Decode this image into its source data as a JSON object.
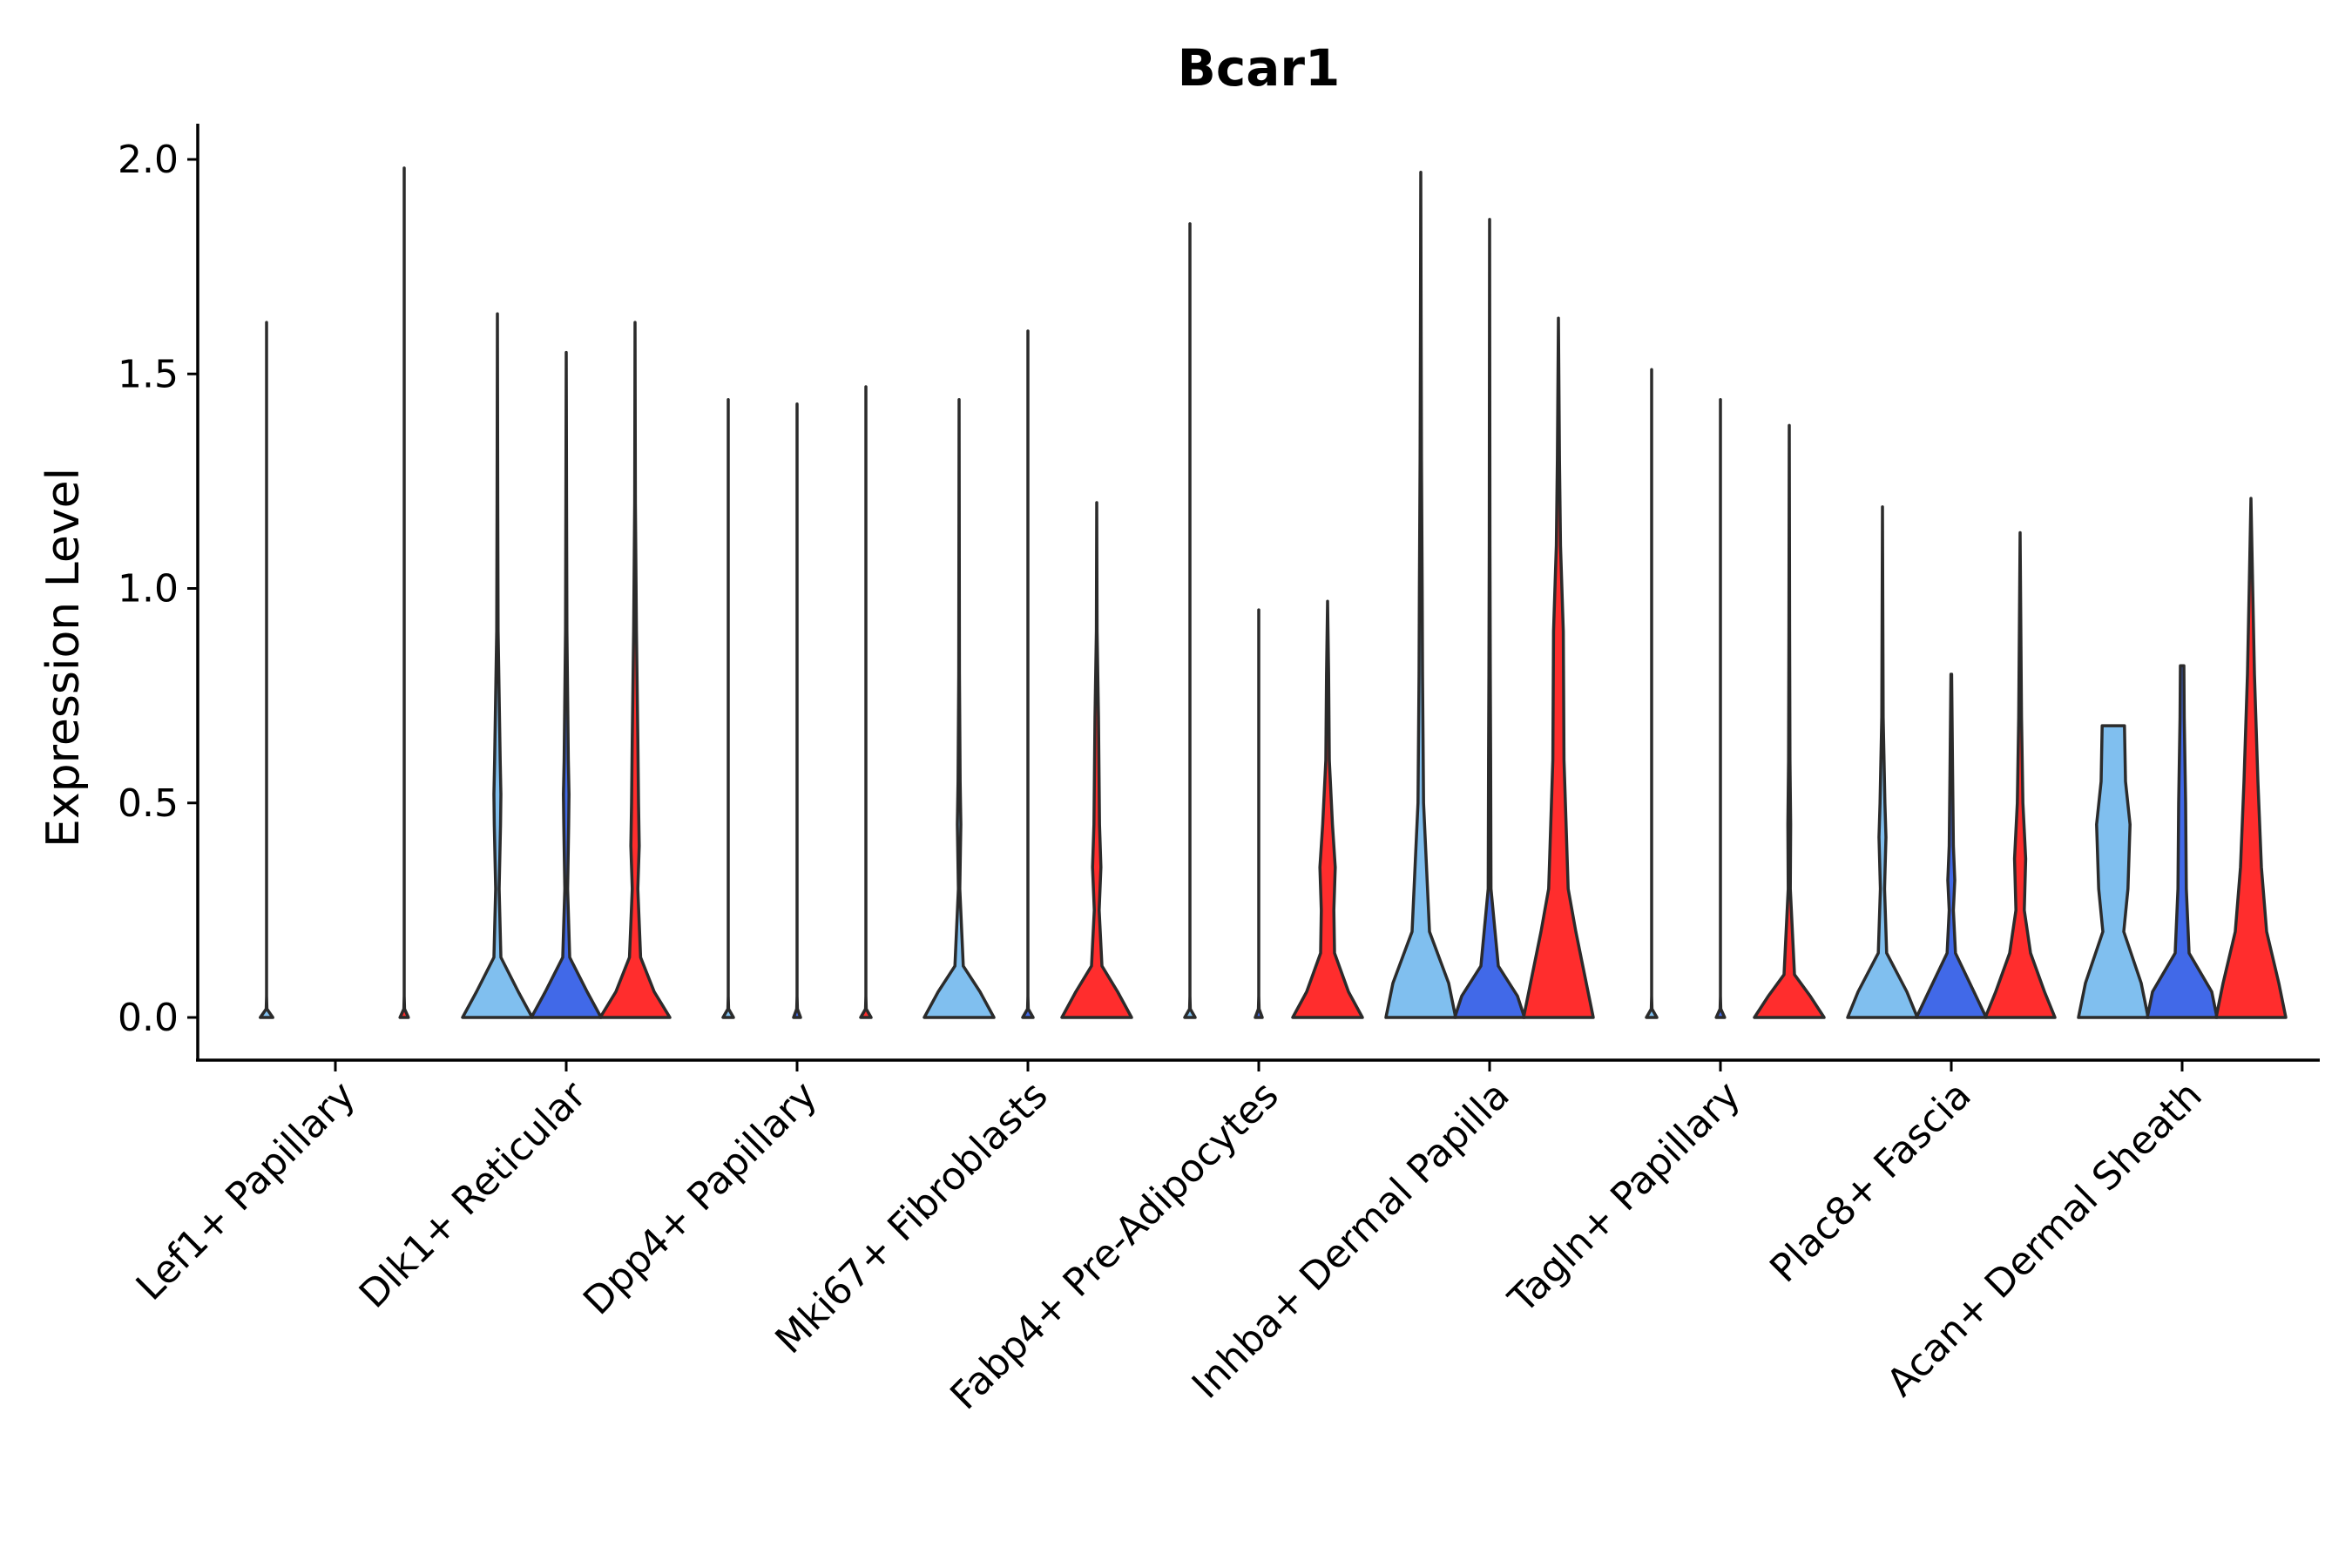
{
  "chart_data": {
    "type": "violin",
    "title": "Bcar1",
    "xlabel": "",
    "ylabel": "Expression Level",
    "ylim": [
      -0.1,
      2.08
    ],
    "yticks": [
      0.0,
      0.5,
      1.0,
      1.5,
      2.0
    ],
    "ytick_labels": [
      "0.0",
      "0.5",
      "1.0",
      "1.5",
      "2.0"
    ],
    "grid": false,
    "legend": "none",
    "categories": [
      "Lef1+ Papillary",
      "Dlk1+ Reticular",
      "Dpp4+ Papillary",
      "Mki67+ Fibroblasts",
      "Fabp4+ Pre-Adipocytes",
      "Inhba+ Dermal Papilla",
      "Tagln+ Papillary",
      "Plac8+ Fascia",
      "Acan+ Dermal Sheath"
    ],
    "series_colors": [
      "#80BFEF",
      "#4169E8",
      "#FF2D2D"
    ],
    "violins": [
      [
        {
          "max": 1.62,
          "shape": [
            [
              0,
              0.18
            ],
            [
              0.02,
              0.01
            ],
            [
              0.05,
              0.0
            ],
            [
              1.62,
              0.0
            ]
          ]
        },
        {
          "max": 0.0,
          "shape": [
            [
              0,
              0.0
            ]
          ]
        },
        {
          "max": 1.98,
          "shape": [
            [
              0,
              0.12
            ],
            [
              0.02,
              0.01
            ],
            [
              0.05,
              0.0
            ],
            [
              1.98,
              0.0
            ]
          ]
        }
      ],
      [
        {
          "max": 1.64,
          "shape": [
            [
              0,
              1.0
            ],
            [
              0.06,
              0.6
            ],
            [
              0.14,
              0.1
            ],
            [
              0.3,
              0.05
            ],
            [
              0.45,
              0.09
            ],
            [
              0.52,
              0.1
            ],
            [
              0.6,
              0.08
            ],
            [
              0.9,
              0.02
            ],
            [
              1.2,
              0.01
            ],
            [
              1.64,
              0.0
            ]
          ]
        },
        {
          "max": 1.55,
          "shape": [
            [
              0,
              1.0
            ],
            [
              0.06,
              0.6
            ],
            [
              0.14,
              0.1
            ],
            [
              0.3,
              0.04
            ],
            [
              0.45,
              0.07
            ],
            [
              0.52,
              0.08
            ],
            [
              0.6,
              0.06
            ],
            [
              0.9,
              0.02
            ],
            [
              1.2,
              0.01
            ],
            [
              1.55,
              0.0
            ]
          ]
        },
        {
          "max": 1.62,
          "shape": [
            [
              0,
              1.0
            ],
            [
              0.06,
              0.55
            ],
            [
              0.14,
              0.16
            ],
            [
              0.3,
              0.08
            ],
            [
              0.4,
              0.12
            ],
            [
              0.5,
              0.1
            ],
            [
              0.65,
              0.08
            ],
            [
              0.9,
              0.04
            ],
            [
              1.2,
              0.01
            ],
            [
              1.62,
              0.0
            ]
          ]
        }
      ],
      [
        {
          "max": 1.44,
          "shape": [
            [
              0,
              0.15
            ],
            [
              0.02,
              0.01
            ],
            [
              0.05,
              0.0
            ],
            [
              1.44,
              0.0
            ]
          ]
        },
        {
          "max": 1.43,
          "shape": [
            [
              0,
              0.1
            ],
            [
              0.02,
              0.01
            ],
            [
              0.05,
              0.0
            ],
            [
              1.43,
              0.0
            ]
          ]
        },
        {
          "max": 1.47,
          "shape": [
            [
              0,
              0.15
            ],
            [
              0.02,
              0.01
            ],
            [
              0.05,
              0.0
            ],
            [
              1.47,
              0.0
            ]
          ]
        }
      ],
      [
        {
          "max": 1.44,
          "shape": [
            [
              0,
              1.0
            ],
            [
              0.06,
              0.6
            ],
            [
              0.12,
              0.12
            ],
            [
              0.3,
              0.02
            ],
            [
              0.45,
              0.05
            ],
            [
              0.55,
              0.03
            ],
            [
              0.8,
              0.01
            ],
            [
              1.44,
              0.0
            ]
          ]
        },
        {
          "max": 1.6,
          "shape": [
            [
              0,
              0.15
            ],
            [
              0.02,
              0.01
            ],
            [
              0.05,
              0.0
            ],
            [
              1.6,
              0.0
            ]
          ]
        },
        {
          "max": 1.2,
          "shape": [
            [
              0,
              1.0
            ],
            [
              0.06,
              0.6
            ],
            [
              0.12,
              0.15
            ],
            [
              0.25,
              0.07
            ],
            [
              0.35,
              0.12
            ],
            [
              0.45,
              0.08
            ],
            [
              0.7,
              0.05
            ],
            [
              0.9,
              0.01
            ],
            [
              1.2,
              0.0
            ]
          ]
        }
      ],
      [
        {
          "max": 1.85,
          "shape": [
            [
              0,
              0.15
            ],
            [
              0.02,
              0.01
            ],
            [
              0.05,
              0.0
            ],
            [
              1.85,
              0.0
            ]
          ]
        },
        {
          "max": 0.95,
          "shape": [
            [
              0,
              0.1
            ],
            [
              0.02,
              0.01
            ],
            [
              0.05,
              0.0
            ],
            [
              0.95,
              0.0
            ]
          ]
        },
        {
          "max": 0.97,
          "shape": [
            [
              0,
              1.0
            ],
            [
              0.06,
              0.6
            ],
            [
              0.15,
              0.2
            ],
            [
              0.25,
              0.18
            ],
            [
              0.35,
              0.22
            ],
            [
              0.45,
              0.14
            ],
            [
              0.6,
              0.05
            ],
            [
              0.8,
              0.03
            ],
            [
              0.97,
              0.0
            ]
          ]
        }
      ],
      [
        {
          "max": 1.97,
          "shape": [
            [
              0,
              1.0
            ],
            [
              0.08,
              0.8
            ],
            [
              0.2,
              0.25
            ],
            [
              0.5,
              0.08
            ],
            [
              0.8,
              0.05
            ],
            [
              1.0,
              0.04
            ],
            [
              1.3,
              0.02
            ],
            [
              1.6,
              0.01
            ],
            [
              1.97,
              0.0
            ]
          ]
        },
        {
          "max": 1.86,
          "shape": [
            [
              0,
              1.0
            ],
            [
              0.05,
              0.8
            ],
            [
              0.12,
              0.25
            ],
            [
              0.3,
              0.04
            ],
            [
              0.6,
              0.03
            ],
            [
              0.8,
              0.02
            ],
            [
              1.1,
              0.01
            ],
            [
              1.86,
              0.0
            ]
          ]
        },
        {
          "max": 1.63,
          "shape": [
            [
              0,
              1.0
            ],
            [
              0.08,
              0.8
            ],
            [
              0.2,
              0.5
            ],
            [
              0.3,
              0.28
            ],
            [
              0.6,
              0.16
            ],
            [
              0.9,
              0.14
            ],
            [
              1.1,
              0.06
            ],
            [
              1.3,
              0.03
            ],
            [
              1.63,
              0.0
            ]
          ]
        }
      ],
      [
        {
          "max": 1.51,
          "shape": [
            [
              0,
              0.15
            ],
            [
              0.02,
              0.01
            ],
            [
              0.05,
              0.0
            ],
            [
              1.51,
              0.0
            ]
          ]
        },
        {
          "max": 1.44,
          "shape": [
            [
              0,
              0.12
            ],
            [
              0.02,
              0.01
            ],
            [
              0.05,
              0.0
            ],
            [
              1.44,
              0.0
            ]
          ]
        },
        {
          "max": 1.38,
          "shape": [
            [
              0,
              1.0
            ],
            [
              0.05,
              0.6
            ],
            [
              0.1,
              0.15
            ],
            [
              0.3,
              0.03
            ],
            [
              0.45,
              0.04
            ],
            [
              0.6,
              0.02
            ],
            [
              0.9,
              0.01
            ],
            [
              1.38,
              0.0
            ]
          ]
        }
      ],
      [
        {
          "max": 1.19,
          "shape": [
            [
              0,
              1.0
            ],
            [
              0.06,
              0.7
            ],
            [
              0.15,
              0.12
            ],
            [
              0.3,
              0.06
            ],
            [
              0.42,
              0.1
            ],
            [
              0.5,
              0.07
            ],
            [
              0.7,
              0.02
            ],
            [
              1.19,
              0.0
            ]
          ]
        },
        {
          "max": 0.8,
          "shape": [
            [
              0,
              1.0
            ],
            [
              0.06,
              0.65
            ],
            [
              0.15,
              0.12
            ],
            [
              0.25,
              0.06
            ],
            [
              0.32,
              0.1
            ],
            [
              0.4,
              0.06
            ],
            [
              0.55,
              0.04
            ],
            [
              0.8,
              0.01
            ]
          ]
        },
        {
          "max": 1.13,
          "shape": [
            [
              0,
              1.0
            ],
            [
              0.06,
              0.7
            ],
            [
              0.15,
              0.3
            ],
            [
              0.25,
              0.12
            ],
            [
              0.37,
              0.16
            ],
            [
              0.5,
              0.08
            ],
            [
              0.7,
              0.04
            ],
            [
              1.13,
              0.0
            ]
          ]
        }
      ],
      [
        {
          "max": 0.68,
          "shape": [
            [
              0,
              1.0
            ],
            [
              0.08,
              0.8
            ],
            [
              0.2,
              0.3
            ],
            [
              0.3,
              0.42
            ],
            [
              0.45,
              0.48
            ],
            [
              0.55,
              0.35
            ],
            [
              0.68,
              0.32
            ]
          ]
        },
        {
          "max": 0.82,
          "shape": [
            [
              0,
              1.0
            ],
            [
              0.06,
              0.85
            ],
            [
              0.15,
              0.2
            ],
            [
              0.3,
              0.12
            ],
            [
              0.5,
              0.1
            ],
            [
              0.7,
              0.06
            ],
            [
              0.82,
              0.05
            ]
          ]
        },
        {
          "max": 1.21,
          "shape": [
            [
              0,
              1.0
            ],
            [
              0.08,
              0.8
            ],
            [
              0.2,
              0.45
            ],
            [
              0.35,
              0.3
            ],
            [
              0.55,
              0.2
            ],
            [
              0.8,
              0.1
            ],
            [
              1.0,
              0.05
            ],
            [
              1.21,
              0.0
            ]
          ]
        }
      ]
    ]
  }
}
